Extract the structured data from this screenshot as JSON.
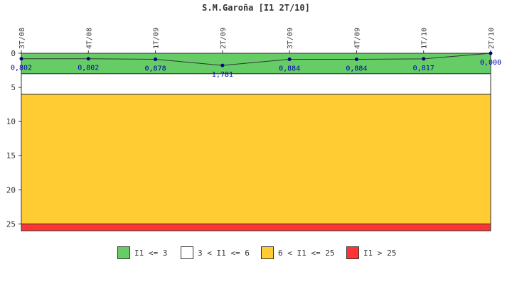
{
  "chart_data": {
    "type": "line",
    "title": "S.M.Garoña [I1 2T/10]",
    "categories": [
      "3T/08",
      "4T/08",
      "1T/09",
      "2T/09",
      "3T/09",
      "4T/09",
      "1T/10",
      "2T/10"
    ],
    "series": [
      {
        "values": [
          0.802,
          0.802,
          0.878,
          1.781,
          0.884,
          0.884,
          0.817,
          0.0
        ],
        "labels": [
          "0,802",
          "0,802",
          "0,878",
          "1,781",
          "0,884",
          "0,884",
          "0,817",
          "0,000"
        ],
        "color": "#000080"
      }
    ],
    "ylim": [
      0,
      26
    ],
    "y_inverted": true,
    "yticks": [
      0,
      5,
      10,
      15,
      20,
      25
    ],
    "bands": [
      {
        "from": 0,
        "to": 3,
        "color": "#66cc66"
      },
      {
        "from": 3,
        "to": 6,
        "color": "#ffffff"
      },
      {
        "from": 6,
        "to": 25,
        "color": "#ffcc33"
      },
      {
        "from": 25,
        "to": 26,
        "color": "#ff3333"
      }
    ],
    "legend_position": "bottom",
    "legend": [
      {
        "label": "I1 <= 3",
        "color": "#66cc66"
      },
      {
        "label": "3 < I1 <= 6",
        "color": "#ffffff"
      },
      {
        "label": "6 < I1 <= 25",
        "color": "#ffcc33"
      },
      {
        "label": "I1 > 25",
        "color": "#ff3333"
      }
    ]
  }
}
